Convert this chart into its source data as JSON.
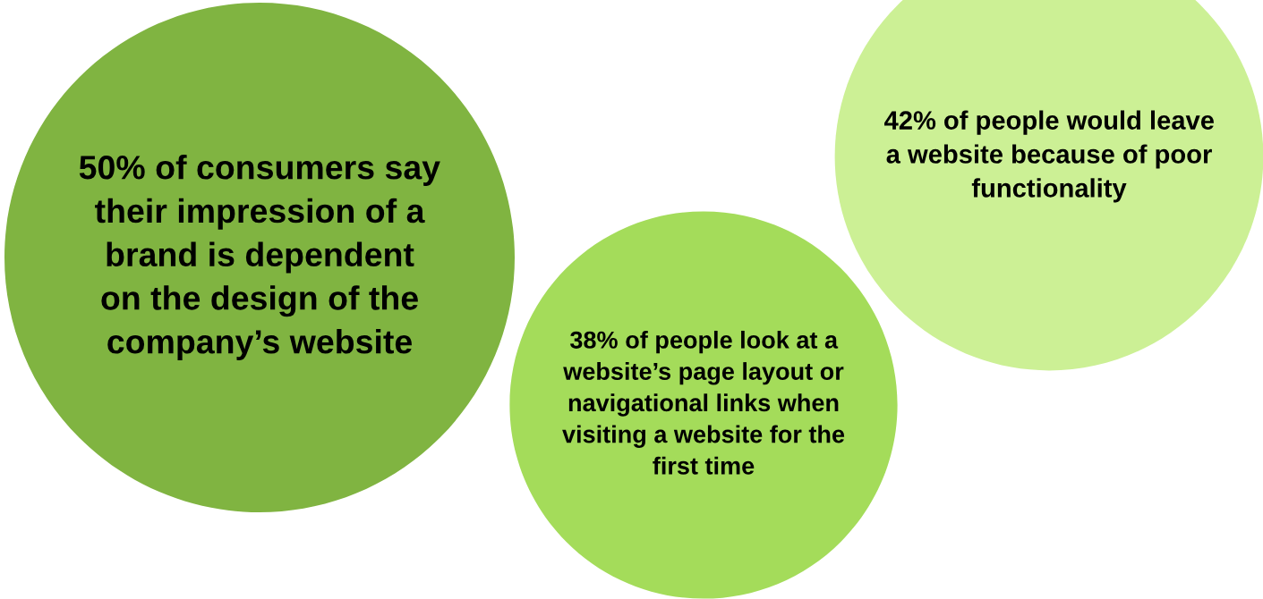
{
  "chart_data": {
    "type": "other",
    "categories": [
      "of consumers say\ntheir impression of a\nbrand is dependent\non the design of the\ncompany’s website",
      "of people look at a\nwebsite’s page layout or\nnavigational links when\nvisiting a website for the\nfirst time",
      "of people would leave\na website because of poor\nfunctionality"
    ],
    "values": [
      50,
      38,
      42
    ],
    "value_labels": [
      "50%",
      "38%",
      "42%"
    ],
    "colors": [
      "#80b441",
      "#a4dc5a",
      "#ccf095"
    ]
  }
}
